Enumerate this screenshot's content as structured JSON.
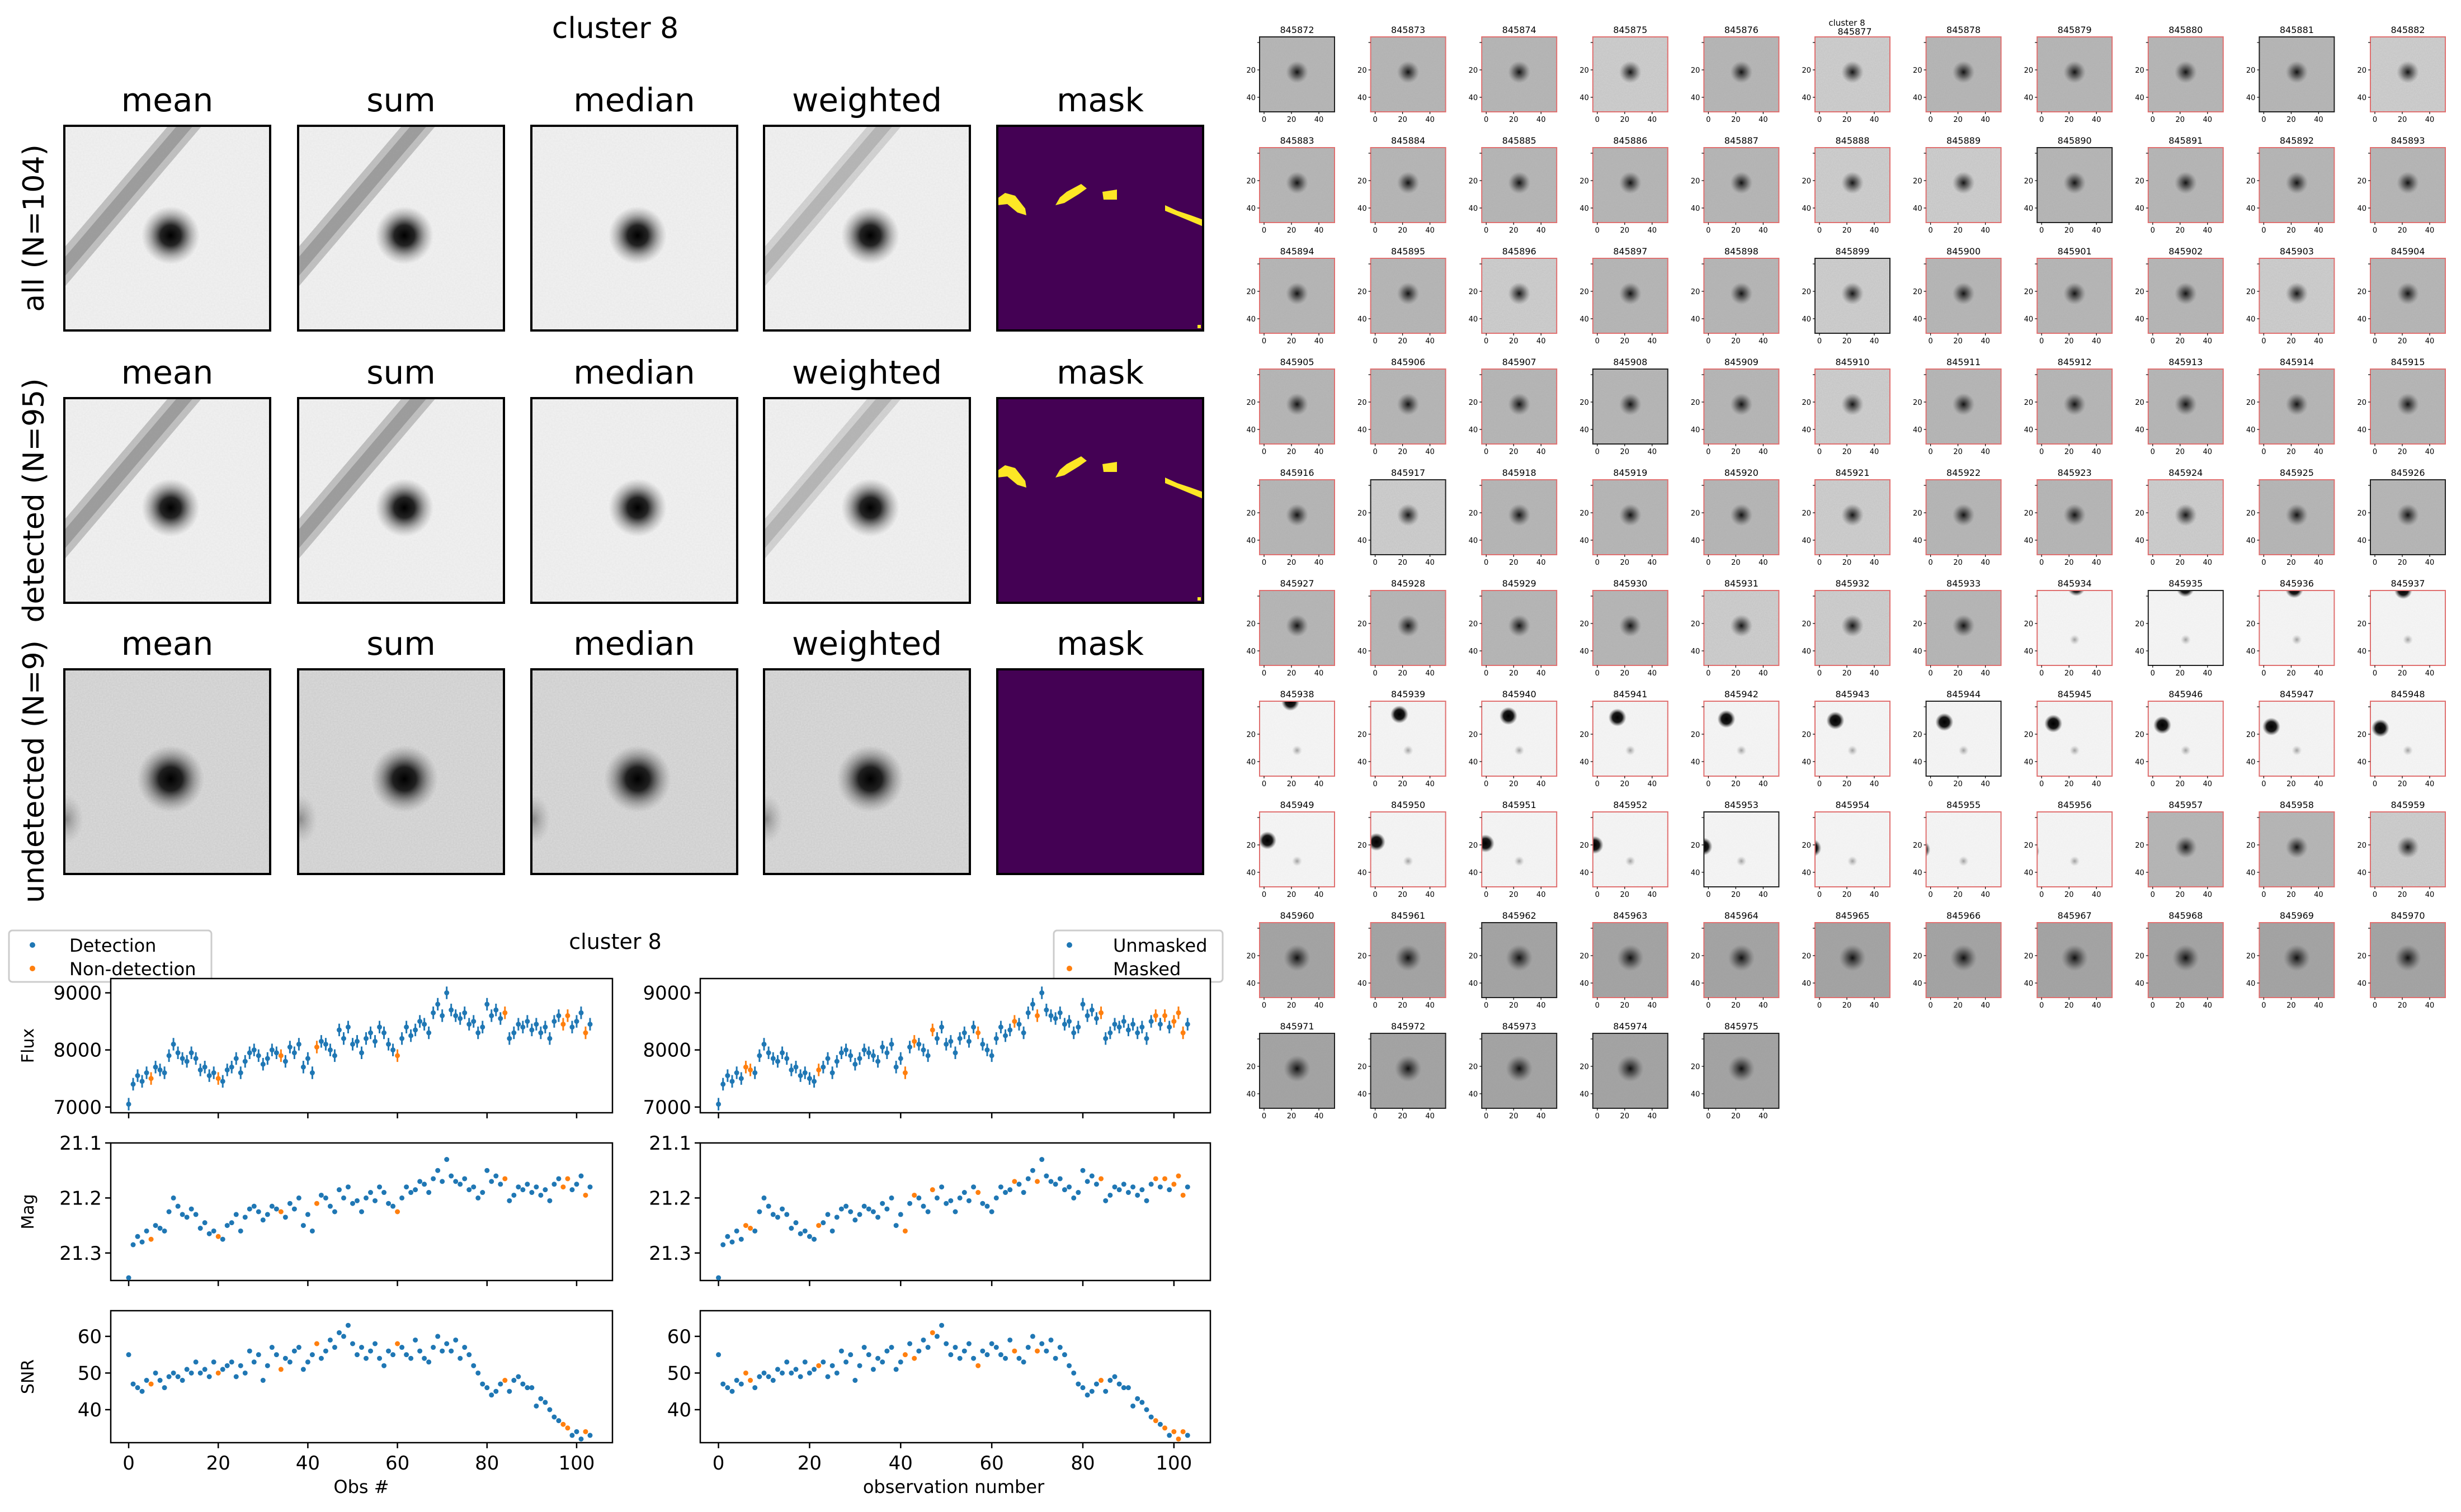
{
  "stacks": {
    "title": "cluster 8",
    "columns": [
      "mean",
      "sum",
      "median",
      "weighted",
      "mask"
    ],
    "rows": [
      {
        "label": "all (N=104)",
        "streak": true,
        "mask_segments": true,
        "noise": "low"
      },
      {
        "label": "detected (N=95)",
        "streak": true,
        "mask_segments": true,
        "noise": "low"
      },
      {
        "label": "undetected (N=9)",
        "streak": false,
        "mask_segments": false,
        "noise": "high"
      }
    ],
    "colors": {
      "mask_bg": "#440154",
      "mask_fg": "#fde725",
      "panel_bg": "#f4f4f4",
      "star": "#000000"
    }
  },
  "lightcurve": {
    "title": "cluster 8",
    "legend_left": [
      "Detection",
      "Non-detection"
    ],
    "legend_right": [
      "Unmasked",
      "Masked"
    ],
    "colors": {
      "primary": "#1f77b4",
      "secondary": "#ff7f0e"
    },
    "ylabels": [
      "Flux",
      "Mag",
      "SNR"
    ],
    "xlabel_left": "Obs #",
    "xlabel_right": "observation number",
    "xlim": [
      -4,
      108
    ],
    "xticks": [
      "0",
      "20",
      "40",
      "60",
      "80",
      "100"
    ],
    "flux_ylim": [
      6900,
      9250
    ],
    "flux_ticks": [
      "7000",
      "8000",
      "9000"
    ],
    "mag_ylim": [
      21.1,
      21.35
    ],
    "mag_ticks": [
      "21.1",
      "21.2",
      "21.3"
    ],
    "snr_ylim": [
      31,
      67
    ],
    "snr_ticks": [
      "40",
      "50",
      "60"
    ]
  },
  "chart_data": {
    "type": "scatter",
    "x_start": 0,
    "count": 104,
    "flux": [
      7050,
      7400,
      7550,
      7450,
      7600,
      7500,
      7700,
      7650,
      7600,
      7900,
      8100,
      7950,
      7850,
      7800,
      7950,
      7850,
      7650,
      7700,
      7550,
      7600,
      7500,
      7450,
      7650,
      7700,
      7850,
      7600,
      7800,
      7950,
      8000,
      7900,
      7750,
      7850,
      8000,
      7950,
      7900,
      7800,
      8050,
      7950,
      8100,
      7700,
      7850,
      7600,
      8050,
      8150,
      8100,
      8000,
      7900,
      8350,
      8200,
      8400,
      8100,
      8150,
      7950,
      8200,
      8300,
      8150,
      8400,
      8300,
      8100,
      8000,
      7900,
      8200,
      8400,
      8250,
      8350,
      8500,
      8450,
      8300,
      8650,
      8800,
      8600,
      9000,
      8700,
      8600,
      8550,
      8650,
      8450,
      8500,
      8300,
      8400,
      8800,
      8600,
      8700,
      8550,
      8650,
      8200,
      8300,
      8450,
      8400,
      8500,
      8350,
      8450,
      8300,
      8400,
      8200,
      8500,
      8600,
      8450,
      8600,
      8400,
      8500,
      8650,
      8300,
      8450
    ],
    "mag": [
      21.345,
      21.285,
      21.27,
      21.28,
      21.26,
      21.275,
      21.25,
      21.255,
      21.26,
      21.225,
      21.2,
      21.215,
      21.23,
      21.235,
      21.22,
      21.23,
      21.255,
      21.245,
      21.265,
      21.26,
      21.27,
      21.275,
      21.25,
      21.245,
      21.23,
      21.26,
      21.235,
      21.22,
      21.215,
      21.225,
      21.24,
      21.23,
      21.215,
      21.22,
      21.225,
      21.235,
      21.21,
      21.22,
      21.2,
      21.25,
      21.23,
      21.26,
      21.21,
      21.195,
      21.2,
      21.215,
      21.225,
      21.185,
      21.2,
      21.18,
      21.21,
      21.205,
      21.225,
      21.2,
      21.19,
      21.205,
      21.18,
      21.19,
      21.21,
      21.215,
      21.225,
      21.2,
      21.18,
      21.19,
      21.185,
      21.17,
      21.175,
      21.19,
      21.165,
      21.15,
      21.17,
      21.13,
      21.16,
      21.17,
      21.175,
      21.165,
      21.185,
      21.18,
      21.2,
      21.19,
      21.15,
      21.17,
      21.16,
      21.175,
      21.165,
      21.205,
      21.195,
      21.18,
      21.185,
      21.175,
      21.19,
      21.18,
      21.195,
      21.185,
      21.205,
      21.175,
      21.165,
      21.18,
      21.165,
      21.185,
      21.175,
      21.16,
      21.195,
      21.18
    ],
    "snr": [
      55,
      47,
      46,
      45,
      48,
      47,
      50,
      48,
      46,
      49,
      50,
      49,
      48,
      51,
      50,
      53,
      50,
      51,
      49,
      53,
      50,
      51,
      52,
      53,
      49,
      52,
      50,
      56,
      53,
      55,
      48,
      52,
      57,
      55,
      51,
      54,
      53,
      56,
      57,
      51,
      53,
      55,
      58,
      54,
      56,
      59,
      57,
      61,
      60,
      63,
      58,
      55,
      57,
      54,
      56,
      58,
      54,
      52,
      56,
      55,
      58,
      57,
      55,
      54,
      59,
      56,
      54,
      53,
      57,
      60,
      56,
      58,
      56,
      59,
      54,
      57,
      55,
      52,
      50,
      47,
      46,
      44,
      45,
      47,
      48,
      45,
      48,
      49,
      47,
      46,
      46,
      41,
      43,
      42,
      40,
      38,
      37,
      36,
      35,
      33,
      34,
      32,
      34,
      33
    ],
    "non_detection_idx": [
      5,
      20,
      34,
      42,
      60,
      84,
      97,
      98,
      102
    ],
    "masked_idx": [
      6,
      7,
      22,
      41,
      43,
      47,
      57,
      65,
      70,
      84,
      96,
      98,
      100,
      101,
      102
    ]
  },
  "cutouts": {
    "first_id": 845872,
    "last_id": 845975,
    "per_row": 11,
    "tick_labels": [
      "0",
      "20",
      "40"
    ],
    "frame_color": "#e07070",
    "overlap_title": "cluster 8"
  }
}
